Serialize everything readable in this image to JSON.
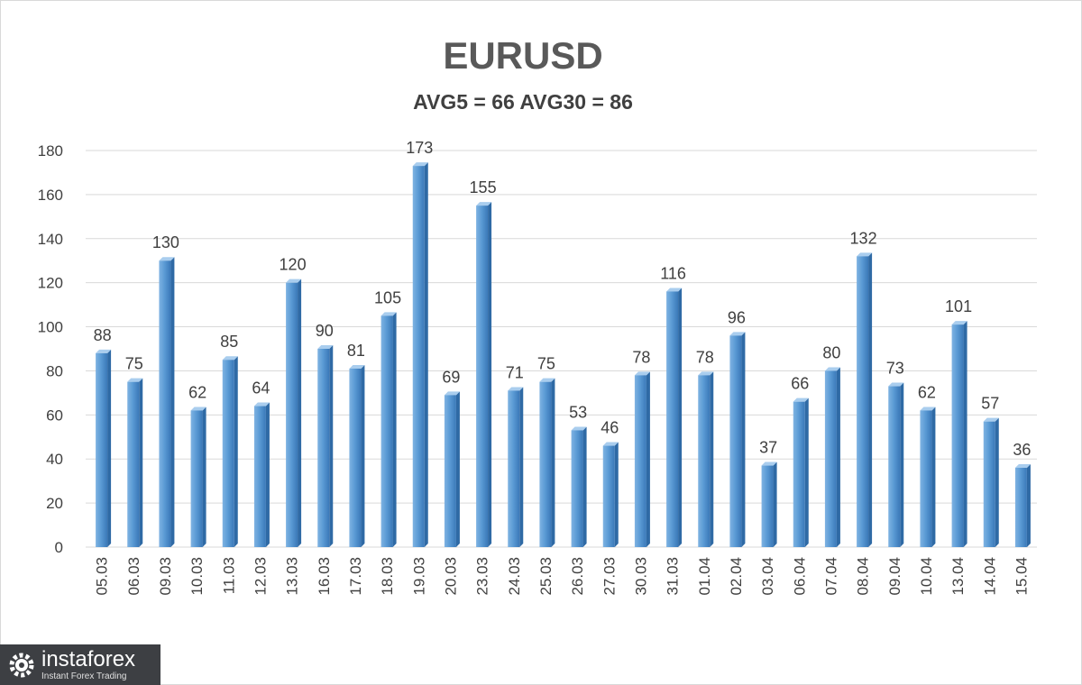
{
  "chart_data": {
    "type": "bar",
    "title": "EURUSD",
    "subtitle": "AVG5 = 66 AVG30 = 86",
    "xlabel": "",
    "ylabel": "",
    "ylim": [
      0,
      180
    ],
    "yticks": [
      0,
      20,
      40,
      60,
      80,
      100,
      120,
      140,
      160,
      180
    ],
    "grid": true,
    "categories": [
      "05.03",
      "06.03",
      "09.03",
      "10.03",
      "11.03",
      "12.03",
      "13.03",
      "16.03",
      "17.03",
      "18.03",
      "19.03",
      "20.03",
      "23.03",
      "24.03",
      "25.03",
      "26.03",
      "27.03",
      "30.03",
      "31.03",
      "01.04",
      "02.04",
      "03.04",
      "06.04",
      "07.04",
      "08.04",
      "09.04",
      "10.04",
      "13.04",
      "14.04",
      "15.04"
    ],
    "values": [
      88,
      75,
      130,
      62,
      85,
      64,
      120,
      90,
      81,
      105,
      173,
      69,
      155,
      71,
      75,
      53,
      46,
      78,
      116,
      78,
      96,
      37,
      66,
      80,
      132,
      73,
      62,
      101,
      57,
      36
    ],
    "bar_color": "#5b9bd5"
  },
  "watermark": {
    "name": "instaforex",
    "tagline": "Instant Forex Trading",
    "icon": "gear-logo-icon"
  }
}
